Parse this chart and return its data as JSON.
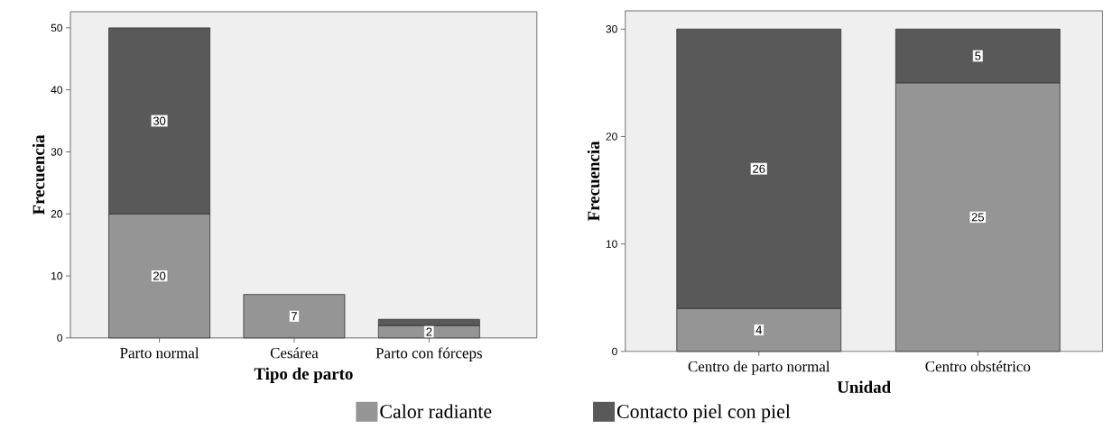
{
  "chart_data": [
    {
      "type": "bar",
      "stacked": true,
      "xlabel": "Tipo de parto",
      "ylabel": "Frecuencia",
      "categories": [
        "Parto normal",
        "Cesárea",
        "Parto con fórceps"
      ],
      "ylim": [
        0,
        52.6
      ],
      "yticks": [
        0,
        10,
        20,
        30,
        40,
        50
      ],
      "legend": "bottom",
      "series": [
        {
          "name": "Calor radiante",
          "color": "#959595",
          "values": [
            20,
            7,
            2
          ],
          "value_labels": [
            "20",
            "7",
            "2"
          ]
        },
        {
          "name": "Contacto piel con piel",
          "color": "#595959",
          "values": [
            30,
            null,
            1
          ],
          "value_labels": [
            "30",
            null,
            null
          ]
        }
      ]
    },
    {
      "type": "bar",
      "stacked": true,
      "xlabel": "Unidad",
      "ylabel": "Frecuencia",
      "categories": [
        "Centro de parto normal",
        "Centro obstétrico"
      ],
      "ylim": [
        0,
        31.7
      ],
      "yticks": [
        0,
        10,
        20,
        30
      ],
      "series": [
        {
          "color": "#959595",
          "values": [
            4,
            25
          ],
          "value_labels": [
            "4",
            "25"
          ]
        },
        {
          "color": "#595959",
          "values": [
            26,
            5
          ],
          "value_labels": [
            "26",
            "5"
          ]
        }
      ]
    }
  ]
}
